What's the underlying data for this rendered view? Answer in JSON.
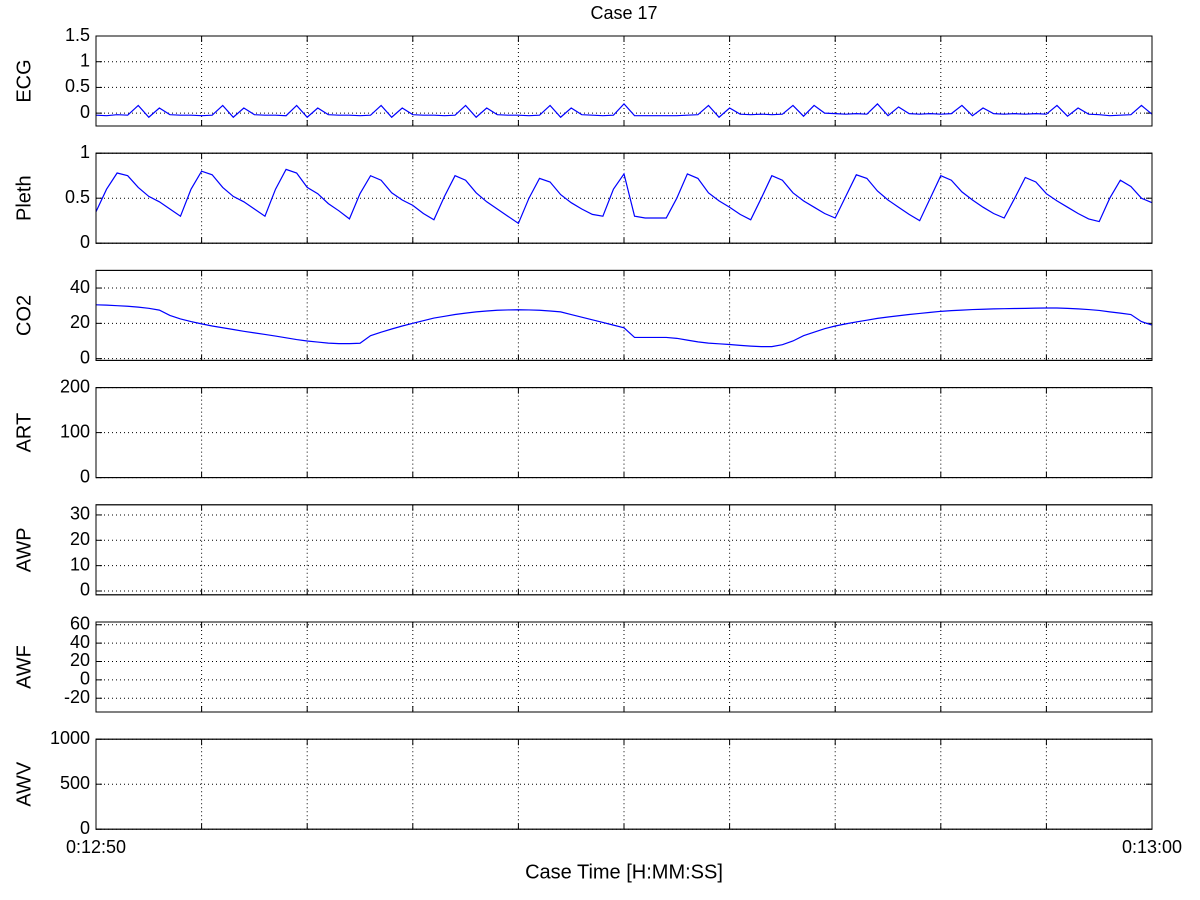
{
  "chart_data": [
    {
      "type": "line",
      "title": "Case 17",
      "ylabel": "ECG",
      "ylim": [
        -0.25,
        1.5
      ],
      "yticks": [
        0,
        0.5,
        1,
        1.5
      ],
      "grid": true,
      "xlim": [
        770,
        780
      ],
      "xticks": [
        {
          "value": 770,
          "label": null
        },
        {
          "value": 771,
          "label": null
        },
        {
          "value": 772,
          "label": null
        },
        {
          "value": 773,
          "label": null
        },
        {
          "value": 774,
          "label": null
        },
        {
          "value": 775,
          "label": null
        },
        {
          "value": 776,
          "label": null
        },
        {
          "value": 777,
          "label": null
        },
        {
          "value": 778,
          "label": null
        },
        {
          "value": 779,
          "label": null
        },
        {
          "value": 780,
          "label": null
        }
      ],
      "x": [
        770,
        770.1,
        770.2,
        770.3,
        770.4,
        770.5,
        770.6,
        770.7,
        770.8,
        770.9,
        771,
        771.1,
        771.2,
        771.3,
        771.4,
        771.5,
        771.6,
        771.7,
        771.8,
        771.9,
        772,
        772.1,
        772.2,
        772.3,
        772.4,
        772.5,
        772.6,
        772.7,
        772.8,
        772.9,
        773,
        773.1,
        773.2,
        773.3,
        773.4,
        773.5,
        773.6,
        773.7,
        773.8,
        773.9,
        774,
        774.1,
        774.2,
        774.3,
        774.4,
        774.5,
        774.6,
        774.7,
        774.8,
        774.9,
        775,
        775.1,
        775.2,
        775.3,
        775.4,
        775.5,
        775.6,
        775.7,
        775.8,
        775.9,
        776,
        776.1,
        776.2,
        776.3,
        776.4,
        776.5,
        776.6,
        776.7,
        776.8,
        776.9,
        777,
        777.1,
        777.2,
        777.3,
        777.4,
        777.5,
        777.6,
        777.7,
        777.8,
        777.9,
        778,
        778.1,
        778.2,
        778.3,
        778.4,
        778.5,
        778.6,
        778.7,
        778.8,
        778.9,
        779,
        779.1,
        779.2,
        779.3,
        779.4,
        779.5,
        779.6,
        779.7,
        779.8,
        779.9,
        780
      ],
      "series": [
        {
          "color": "#0000ff",
          "values": [
            -0.04,
            -0.05,
            -0.03,
            -0.04,
            0.15,
            -0.08,
            0.1,
            -0.03,
            -0.04,
            -0.04,
            -0.05,
            -0.04,
            0.15,
            -0.08,
            0.1,
            -0.03,
            -0.04,
            -0.04,
            -0.05,
            0.15,
            -0.08,
            0.1,
            -0.03,
            -0.04,
            -0.04,
            -0.05,
            -0.04,
            0.15,
            -0.08,
            0.1,
            -0.03,
            -0.04,
            -0.04,
            -0.05,
            -0.04,
            0.15,
            -0.08,
            0.1,
            -0.03,
            -0.04,
            -0.04,
            -0.05,
            -0.04,
            0.15,
            -0.08,
            0.1,
            -0.03,
            -0.04,
            -0.05,
            -0.04,
            0.18,
            -0.05,
            -0.05,
            -0.05,
            -0.05,
            -0.05,
            -0.04,
            -0.03,
            0.15,
            -0.08,
            0.1,
            -0.02,
            -0.03,
            -0.02,
            -0.03,
            -0.02,
            0.15,
            -0.06,
            0.15,
            0,
            -0.01,
            -0.02,
            -0.01,
            -0.02,
            0.18,
            -0.05,
            0.12,
            -0.01,
            -0.02,
            -0.01,
            -0.02,
            -0.01,
            0.15,
            -0.05,
            0.1,
            -0.01,
            -0.02,
            -0.01,
            -0.02,
            -0.01,
            -0.02,
            0.15,
            -0.06,
            0.1,
            -0.02,
            -0.03,
            -0.05,
            -0.04,
            -0.03,
            0.15,
            -0.02
          ]
        }
      ]
    },
    {
      "type": "line",
      "ylabel": "Pleth",
      "ylim": [
        0,
        1
      ],
      "yticks": [
        0,
        0.5,
        1
      ],
      "grid": true,
      "xlim": [
        770,
        780
      ],
      "xticks": [
        {
          "value": 770,
          "label": null
        },
        {
          "value": 771,
          "label": null
        },
        {
          "value": 772,
          "label": null
        },
        {
          "value": 773,
          "label": null
        },
        {
          "value": 774,
          "label": null
        },
        {
          "value": 775,
          "label": null
        },
        {
          "value": 776,
          "label": null
        },
        {
          "value": 777,
          "label": null
        },
        {
          "value": 778,
          "label": null
        },
        {
          "value": 779,
          "label": null
        },
        {
          "value": 780,
          "label": null
        }
      ],
      "x": [
        770,
        770.1,
        770.2,
        770.3,
        770.4,
        770.5,
        770.6,
        770.7,
        770.8,
        770.9,
        771,
        771.1,
        771.2,
        771.3,
        771.4,
        771.5,
        771.6,
        771.7,
        771.8,
        771.9,
        772,
        772.1,
        772.2,
        772.3,
        772.4,
        772.5,
        772.6,
        772.7,
        772.8,
        772.9,
        773,
        773.1,
        773.2,
        773.3,
        773.4,
        773.5,
        773.6,
        773.7,
        773.8,
        773.9,
        774,
        774.1,
        774.2,
        774.3,
        774.4,
        774.5,
        774.6,
        774.7,
        774.8,
        774.9,
        775,
        775.1,
        775.2,
        775.3,
        775.4,
        775.5,
        775.6,
        775.7,
        775.8,
        775.9,
        776,
        776.1,
        776.2,
        776.3,
        776.4,
        776.5,
        776.6,
        776.7,
        776.8,
        776.9,
        777,
        777.1,
        777.2,
        777.3,
        777.4,
        777.5,
        777.6,
        777.7,
        777.8,
        777.9,
        778,
        778.1,
        778.2,
        778.3,
        778.4,
        778.5,
        778.6,
        778.7,
        778.8,
        778.9,
        779,
        779.1,
        779.2,
        779.3,
        779.4,
        779.5,
        779.6,
        779.7,
        779.8,
        779.9,
        780
      ],
      "series": [
        {
          "color": "#0000ff",
          "values": [
            0.35,
            0.6,
            0.78,
            0.75,
            0.62,
            0.52,
            0.46,
            0.38,
            0.3,
            0.6,
            0.8,
            0.76,
            0.62,
            0.52,
            0.46,
            0.38,
            0.3,
            0.6,
            0.82,
            0.78,
            0.62,
            0.55,
            0.44,
            0.36,
            0.27,
            0.55,
            0.75,
            0.7,
            0.56,
            0.48,
            0.42,
            0.33,
            0.26,
            0.52,
            0.75,
            0.7,
            0.56,
            0.46,
            0.38,
            0.3,
            0.22,
            0.5,
            0.72,
            0.68,
            0.54,
            0.45,
            0.38,
            0.32,
            0.3,
            0.6,
            0.77,
            0.3,
            0.28,
            0.28,
            0.28,
            0.5,
            0.77,
            0.72,
            0.56,
            0.47,
            0.4,
            0.32,
            0.26,
            0.5,
            0.75,
            0.7,
            0.56,
            0.47,
            0.4,
            0.33,
            0.28,
            0.52,
            0.76,
            0.72,
            0.58,
            0.48,
            0.4,
            0.32,
            0.25,
            0.5,
            0.75,
            0.7,
            0.57,
            0.48,
            0.4,
            0.33,
            0.28,
            0.5,
            0.73,
            0.68,
            0.55,
            0.47,
            0.4,
            0.33,
            0.27,
            0.24,
            0.5,
            0.7,
            0.63,
            0.5,
            0.45
          ]
        }
      ]
    },
    {
      "type": "line",
      "ylabel": "CO2",
      "ylim": [
        -1,
        50
      ],
      "yticks": [
        0,
        20,
        40
      ],
      "grid": true,
      "xlim": [
        770,
        780
      ],
      "xticks": [
        {
          "value": 770,
          "label": null
        },
        {
          "value": 771,
          "label": null
        },
        {
          "value": 772,
          "label": null
        },
        {
          "value": 773,
          "label": null
        },
        {
          "value": 774,
          "label": null
        },
        {
          "value": 775,
          "label": null
        },
        {
          "value": 776,
          "label": null
        },
        {
          "value": 777,
          "label": null
        },
        {
          "value": 778,
          "label": null
        },
        {
          "value": 779,
          "label": null
        },
        {
          "value": 780,
          "label": null
        }
      ],
      "x": [
        770,
        770.1,
        770.2,
        770.3,
        770.4,
        770.5,
        770.6,
        770.7,
        770.8,
        770.9,
        771,
        771.1,
        771.2,
        771.3,
        771.4,
        771.5,
        771.6,
        771.7,
        771.8,
        771.9,
        772,
        772.1,
        772.2,
        772.3,
        772.4,
        772.5,
        772.6,
        772.7,
        772.8,
        772.9,
        773,
        773.1,
        773.2,
        773.3,
        773.4,
        773.5,
        773.6,
        773.7,
        773.8,
        773.9,
        774,
        774.1,
        774.2,
        774.3,
        774.4,
        774.5,
        774.6,
        774.7,
        774.8,
        774.9,
        775,
        775.1,
        775.2,
        775.3,
        775.4,
        775.5,
        775.6,
        775.7,
        775.8,
        775.9,
        776,
        776.1,
        776.2,
        776.3,
        776.4,
        776.5,
        776.6,
        776.7,
        776.8,
        776.9,
        777,
        777.1,
        777.2,
        777.3,
        777.4,
        777.5,
        777.6,
        777.7,
        777.8,
        777.9,
        778,
        778.1,
        778.2,
        778.3,
        778.4,
        778.5,
        778.6,
        778.7,
        778.8,
        778.9,
        779,
        779.1,
        779.2,
        779.3,
        779.4,
        779.5,
        779.6,
        779.7,
        779.8,
        779.9,
        780
      ],
      "series": [
        {
          "color": "#0000ff",
          "values": [
            30.5,
            30.3,
            30,
            29.7,
            29.2,
            28.5,
            27.5,
            24.5,
            22.5,
            21,
            19.7,
            18.5,
            17.5,
            16.5,
            15.5,
            14.6,
            13.7,
            12.8,
            11.8,
            10.8,
            10,
            9.4,
            8.8,
            8.5,
            8.5,
            8.7,
            13,
            15,
            16.8,
            18.5,
            20,
            21.5,
            23,
            24,
            25,
            25.8,
            26.5,
            27,
            27.4,
            27.6,
            27.7,
            27.6,
            27.4,
            27,
            26.5,
            25,
            23.5,
            22,
            20.5,
            19,
            17.5,
            12,
            12,
            12,
            12,
            11.5,
            10.5,
            9.5,
            8.8,
            8.4,
            8,
            7.5,
            7.1,
            6.8,
            6.8,
            7.9,
            10,
            13,
            15,
            17,
            18.5,
            19.7,
            20.8,
            21.8,
            22.8,
            23.6,
            24.3,
            25,
            25.6,
            26.2,
            26.8,
            27.2,
            27.5,
            27.8,
            28,
            28.2,
            28.3,
            28.4,
            28.5,
            28.6,
            28.7,
            28.7,
            28.5,
            28.2,
            27.8,
            27.3,
            26.5,
            25.8,
            25,
            21,
            19
          ]
        }
      ]
    },
    {
      "type": "line",
      "ylabel": "ART",
      "ylim": [
        0,
        200
      ],
      "yticks": [
        0,
        100,
        200
      ],
      "grid": true,
      "xlim": [
        770,
        780
      ],
      "xticks": [
        {
          "value": 770,
          "label": null
        },
        {
          "value": 771,
          "label": null
        },
        {
          "value": 772,
          "label": null
        },
        {
          "value": 773,
          "label": null
        },
        {
          "value": 774,
          "label": null
        },
        {
          "value": 775,
          "label": null
        },
        {
          "value": 776,
          "label": null
        },
        {
          "value": 777,
          "label": null
        },
        {
          "value": 778,
          "label": null
        },
        {
          "value": 779,
          "label": null
        },
        {
          "value": 780,
          "label": null
        }
      ]
    },
    {
      "type": "line",
      "ylabel": "AWP",
      "ylim": [
        -1.5,
        34
      ],
      "yticks": [
        0,
        10,
        20,
        30
      ],
      "grid": true,
      "xlim": [
        770,
        780
      ],
      "xticks": [
        {
          "value": 770,
          "label": null
        },
        {
          "value": 771,
          "label": null
        },
        {
          "value": 772,
          "label": null
        },
        {
          "value": 773,
          "label": null
        },
        {
          "value": 774,
          "label": null
        },
        {
          "value": 775,
          "label": null
        },
        {
          "value": 776,
          "label": null
        },
        {
          "value": 777,
          "label": null
        },
        {
          "value": 778,
          "label": null
        },
        {
          "value": 779,
          "label": null
        },
        {
          "value": 780,
          "label": null
        }
      ]
    },
    {
      "type": "line",
      "ylabel": "AWF",
      "ylim": [
        -35,
        63
      ],
      "yticks": [
        -20,
        0,
        20,
        40,
        60
      ],
      "grid": true,
      "xlim": [
        770,
        780
      ],
      "xticks": [
        {
          "value": 770,
          "label": null
        },
        {
          "value": 771,
          "label": null
        },
        {
          "value": 772,
          "label": null
        },
        {
          "value": 773,
          "label": null
        },
        {
          "value": 774,
          "label": null
        },
        {
          "value": 775,
          "label": null
        },
        {
          "value": 776,
          "label": null
        },
        {
          "value": 777,
          "label": null
        },
        {
          "value": 778,
          "label": null
        },
        {
          "value": 779,
          "label": null
        },
        {
          "value": 780,
          "label": null
        }
      ]
    },
    {
      "type": "line",
      "ylabel": "AWV",
      "xlabel": "Case Time [H:MM:SS]",
      "ylim": [
        0,
        1000
      ],
      "yticks": [
        0,
        500,
        1000
      ],
      "grid": true,
      "xlim": [
        770,
        780
      ],
      "xticks": [
        {
          "value": 770,
          "label": "0:12:50"
        },
        {
          "value": 771,
          "label": null
        },
        {
          "value": 772,
          "label": null
        },
        {
          "value": 773,
          "label": null
        },
        {
          "value": 774,
          "label": null
        },
        {
          "value": 775,
          "label": null
        },
        {
          "value": 776,
          "label": null
        },
        {
          "value": 777,
          "label": null
        },
        {
          "value": 778,
          "label": null
        },
        {
          "value": 779,
          "label": null
        },
        {
          "value": 780,
          "label": "0:13:00"
        }
      ]
    }
  ]
}
